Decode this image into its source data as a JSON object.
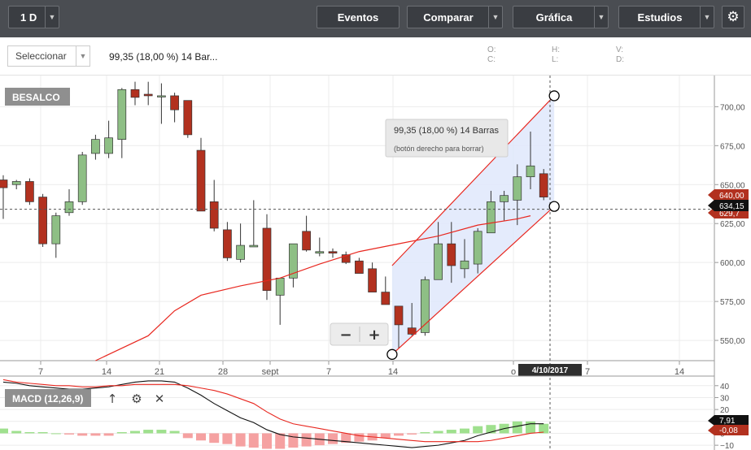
{
  "toolbar": {
    "period": "1 D",
    "eventos": "Eventos",
    "comparar": "Comparar",
    "grafica": "Gráfica",
    "estudios": "Estudios"
  },
  "subbar": {
    "select_label": "Seleccionar",
    "measure_text": "99,35 (18,00 %) 14 Bar...",
    "ohlc_labels": {
      "o": "O:",
      "h": "H:",
      "v": "V:",
      "c": "C:",
      "l": "L:",
      "d": "D:"
    }
  },
  "chart_data": [
    {
      "type": "candlestick",
      "title": "BESALCO",
      "ylim": [
        537,
        720
      ],
      "y_ticks": [
        "700,00",
        "675,00",
        "650,00",
        "625,00",
        "600,00",
        "575,00",
        "550,00"
      ],
      "x_ticks": [
        "7",
        "14",
        "21",
        "28",
        "sept",
        "7",
        "14",
        "o",
        "7",
        "14"
      ],
      "x_axis_highlight": "4/10/2017",
      "price_tags": {
        "last": "640,00",
        "crosshair": "634,15",
        "partial": "629,7"
      },
      "colors": {
        "up": "#8ebf85",
        "down": "#b2311f",
        "ma": "#e8271f",
        "channel_fill": "#dfe7fb"
      },
      "candles": [
        {
          "o": 653,
          "h": 656,
          "l": 628,
          "c": 648
        },
        {
          "o": 650,
          "h": 653,
          "l": 647,
          "c": 652
        },
        {
          "o": 652,
          "h": 654,
          "l": 637,
          "c": 639
        },
        {
          "o": 642,
          "h": 644,
          "l": 610,
          "c": 612
        },
        {
          "o": 612,
          "h": 632,
          "l": 603,
          "c": 630
        },
        {
          "o": 632,
          "h": 647,
          "l": 630,
          "c": 639
        },
        {
          "o": 639,
          "h": 671,
          "l": 637,
          "c": 669
        },
        {
          "o": 670,
          "h": 682,
          "l": 666,
          "c": 679
        },
        {
          "o": 670,
          "h": 691,
          "l": 667,
          "c": 680
        },
        {
          "o": 679,
          "h": 712,
          "l": 667,
          "c": 711
        },
        {
          "o": 711,
          "h": 716,
          "l": 701,
          "c": 706
        },
        {
          "o": 708,
          "h": 716,
          "l": 701,
          "c": 707
        },
        {
          "o": 707,
          "h": 715,
          "l": 689,
          "c": 707
        },
        {
          "o": 707,
          "h": 709,
          "l": 690,
          "c": 698
        },
        {
          "o": 704,
          "h": 704,
          "l": 680,
          "c": 682
        },
        {
          "o": 672,
          "h": 680,
          "l": 633,
          "c": 633
        },
        {
          "o": 639,
          "h": 653,
          "l": 620,
          "c": 622
        },
        {
          "o": 621,
          "h": 626,
          "l": 601,
          "c": 603
        },
        {
          "o": 602,
          "h": 625,
          "l": 600,
          "c": 611
        },
        {
          "o": 610,
          "h": 640,
          "l": 610,
          "c": 611
        },
        {
          "o": 622,
          "h": 631,
          "l": 576,
          "c": 582
        },
        {
          "o": 579,
          "h": 590,
          "l": 560,
          "c": 590
        },
        {
          "o": 590,
          "h": 612,
          "l": 584,
          "c": 612
        },
        {
          "o": 620,
          "h": 630,
          "l": 607,
          "c": 608
        },
        {
          "o": 606,
          "h": 616,
          "l": 604,
          "c": 607
        },
        {
          "o": 607,
          "h": 609,
          "l": 603,
          "c": 606
        },
        {
          "o": 605,
          "h": 607,
          "l": 599,
          "c": 600
        },
        {
          "o": 601,
          "h": 603,
          "l": 593,
          "c": 593
        },
        {
          "o": 596,
          "h": 600,
          "l": 581,
          "c": 581
        },
        {
          "o": 581,
          "h": 591,
          "l": 573,
          "c": 573
        },
        {
          "o": 572,
          "h": 572,
          "l": 545,
          "c": 560
        },
        {
          "o": 558,
          "h": 574,
          "l": 553,
          "c": 554
        },
        {
          "o": 555,
          "h": 591,
          "l": 553,
          "c": 589
        },
        {
          "o": 589,
          "h": 626,
          "l": 589,
          "c": 612
        },
        {
          "o": 612,
          "h": 626,
          "l": 587,
          "c": 598
        },
        {
          "o": 596,
          "h": 615,
          "l": 590,
          "c": 601
        },
        {
          "o": 599,
          "h": 622,
          "l": 593,
          "c": 620
        },
        {
          "o": 619,
          "h": 646,
          "l": 619,
          "c": 639
        },
        {
          "o": 639,
          "h": 646,
          "l": 627,
          "c": 643
        },
        {
          "o": 640,
          "h": 663,
          "l": 624,
          "c": 655
        },
        {
          "o": 655,
          "h": 684,
          "l": 647,
          "c": 662
        },
        {
          "o": 657,
          "h": 660,
          "l": 640,
          "c": 642
        }
      ],
      "moving_average": [
        {
          "i": 7,
          "v": 537
        },
        {
          "i": 11,
          "v": 553
        },
        {
          "i": 13,
          "v": 569
        },
        {
          "i": 15,
          "v": 579
        },
        {
          "i": 18,
          "v": 585
        },
        {
          "i": 21,
          "v": 590
        },
        {
          "i": 24,
          "v": 599
        },
        {
          "i": 27,
          "v": 607
        },
        {
          "i": 30,
          "v": 612
        },
        {
          "i": 33,
          "v": 617
        },
        {
          "i": 36,
          "v": 624
        },
        {
          "i": 39,
          "v": 628
        },
        {
          "i": 40,
          "v": 630
        }
      ],
      "channel": {
        "p1": {
          "i": 29.5,
          "v": 541
        },
        "p2": {
          "i": 41.8,
          "v": 707
        },
        "p3": {
          "i": 41.8,
          "v": 636
        },
        "top_start_v": 598
      },
      "tooltip": {
        "line1": "99,35 (18,00 %) 14 Barras",
        "line2": "(botón derecho para borrar)"
      },
      "zoom": {
        "minus": "−",
        "plus": "+"
      }
    },
    {
      "type": "bar",
      "title": "MACD (12,26,9)",
      "ylim": [
        -14,
        46
      ],
      "y_ticks": [
        "40",
        "30",
        "20",
        "10",
        "0",
        "−10"
      ],
      "value_tags": [
        "7,91",
        "-0,08"
      ],
      "colors": {
        "pos": "#9fe08e",
        "neg": "#f5a1a1",
        "macd": "#111111",
        "signal": "#e8271f"
      },
      "histogram": [
        4,
        2,
        1,
        1,
        0,
        -1,
        -2,
        -2,
        -2,
        1,
        2,
        3,
        3,
        2,
        -4,
        -6,
        -8,
        -9,
        -11,
        -12,
        -13,
        -13,
        -12,
        -11,
        -10,
        -9,
        -8,
        -7,
        -6,
        -4,
        -2,
        -1,
        1,
        2,
        3,
        4,
        6,
        7,
        8,
        10,
        10,
        8
      ],
      "macd_line": [
        43,
        42,
        40,
        39,
        38,
        37,
        37,
        38,
        39,
        41,
        43,
        44,
        44,
        43,
        38,
        32,
        25,
        19,
        13,
        9,
        3,
        -1,
        -3,
        -4,
        -5,
        -6,
        -7,
        -8,
        -9,
        -10,
        -11,
        -12,
        -11,
        -10,
        -8,
        -6,
        -2,
        1,
        4,
        6,
        8,
        8
      ],
      "signal_line": [
        45,
        43,
        42,
        41,
        40,
        40,
        39,
        39,
        40,
        40,
        41,
        41,
        41,
        41,
        40,
        38,
        36,
        33,
        29,
        25,
        18,
        12,
        8,
        6,
        4,
        2,
        0,
        -2,
        -3,
        -4,
        -5,
        -6,
        -7,
        -7,
        -7,
        -7,
        -7,
        -6,
        -4,
        -2,
        0,
        1
      ]
    }
  ]
}
